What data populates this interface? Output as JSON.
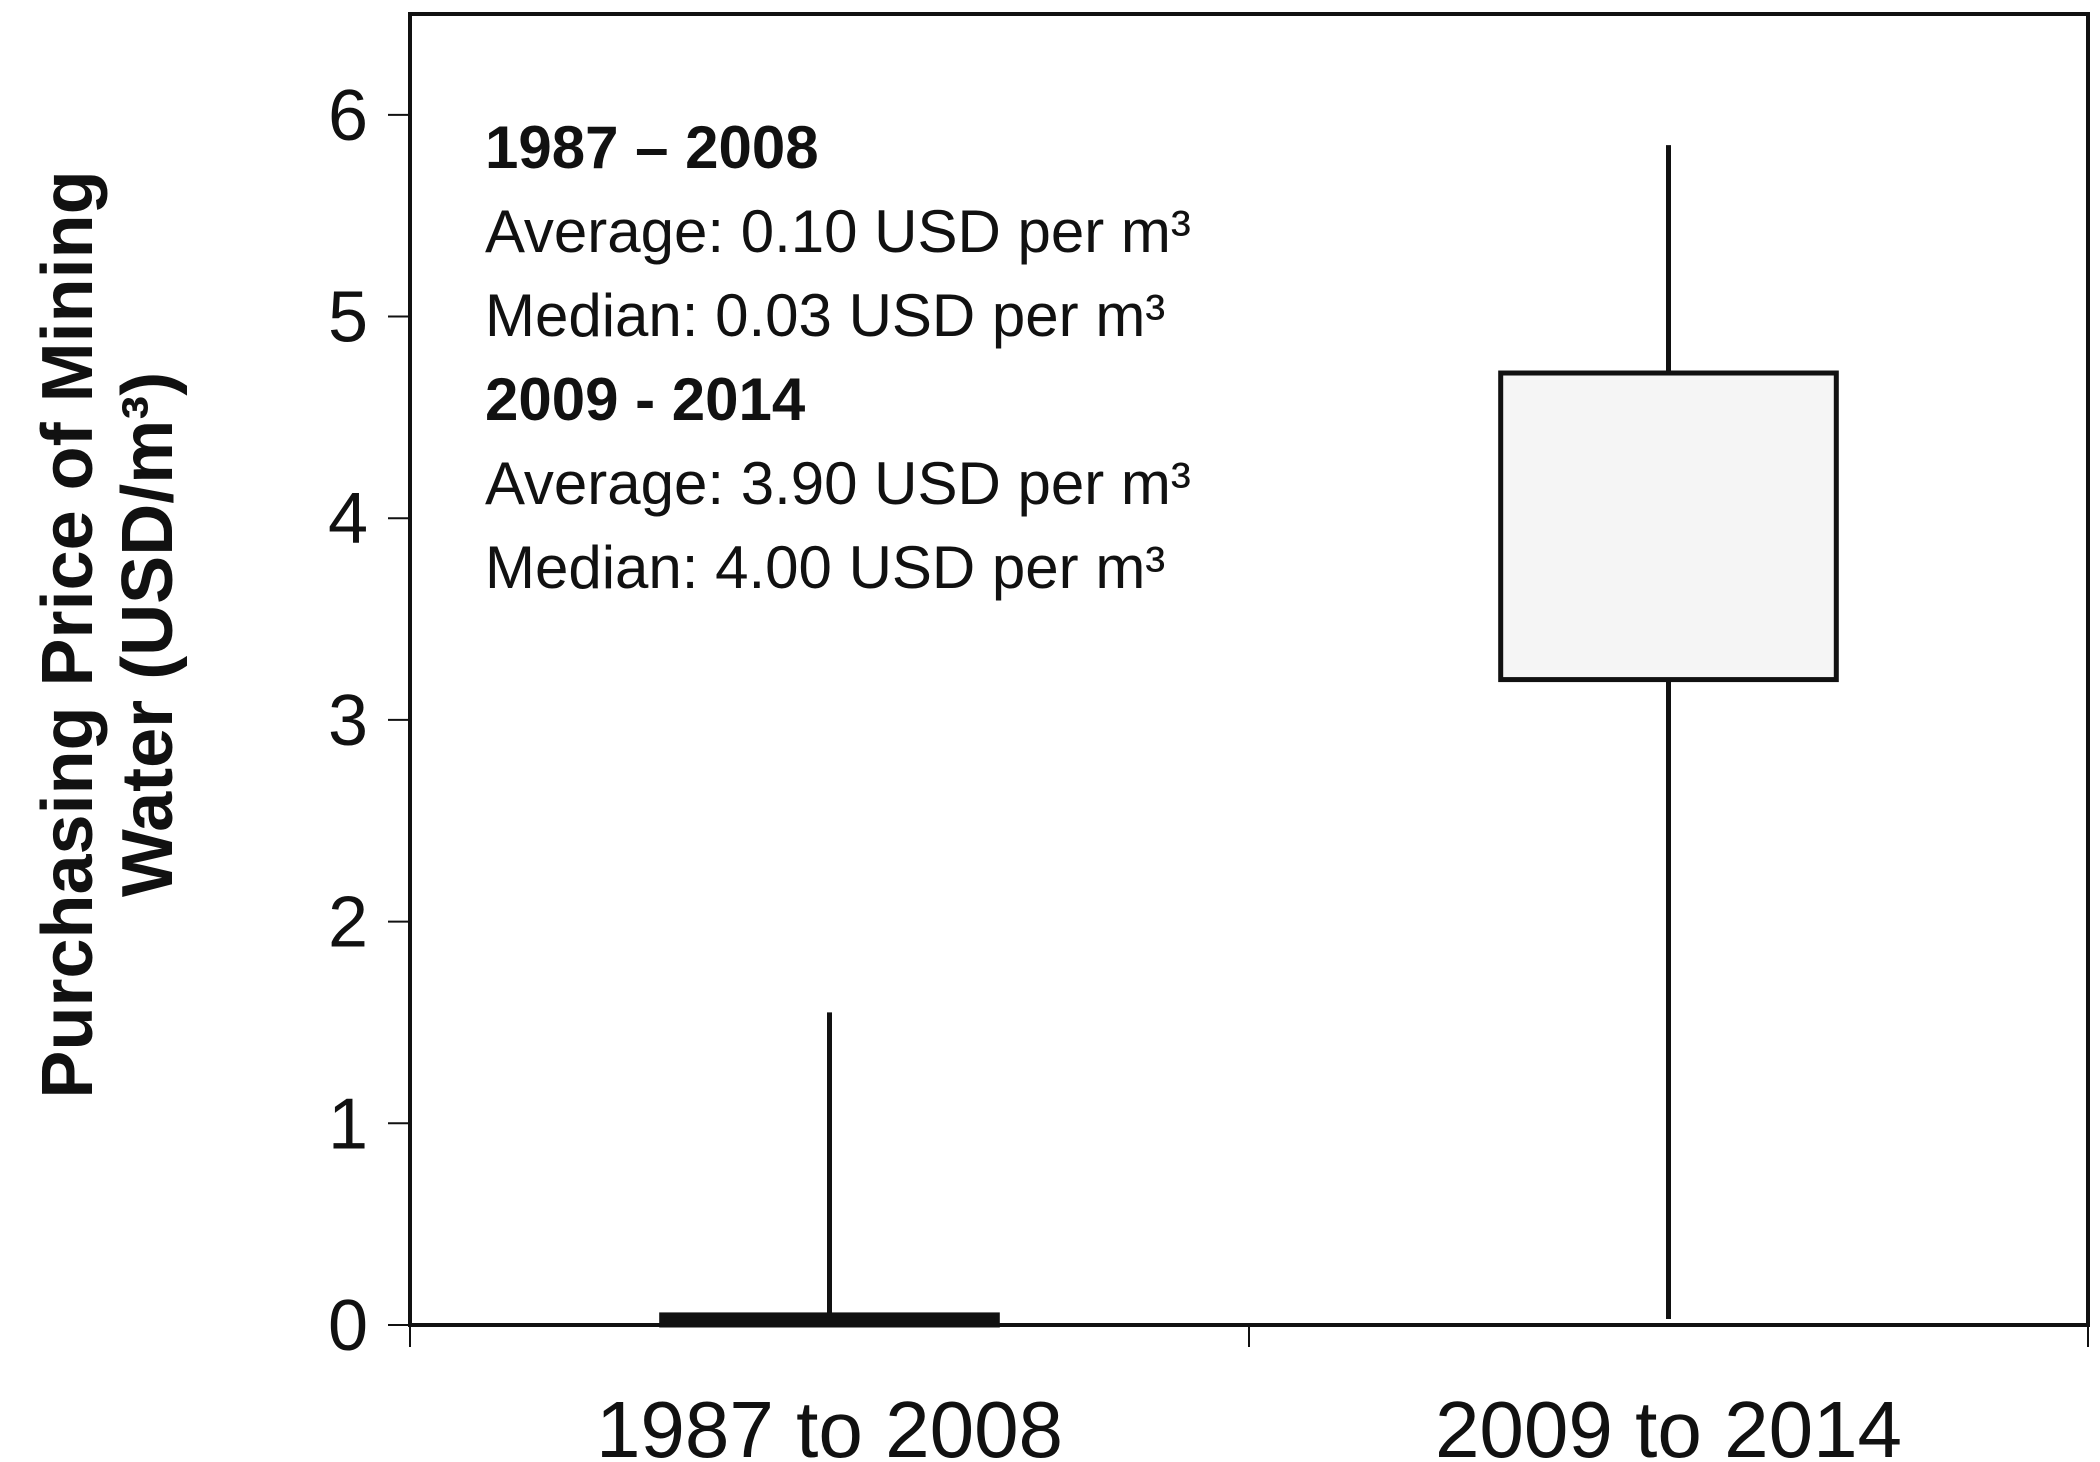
{
  "chart_data": {
    "type": "box",
    "title": "",
    "xlabel": "",
    "ylabel_lines": [
      "Purchasing  Price of Mining",
      "Water (USD/m³)"
    ],
    "ylim": [
      0,
      6.5
    ],
    "yticks": [
      0,
      1,
      2,
      3,
      4,
      5,
      6
    ],
    "categories": [
      "1987 to 2008",
      "2009 to 2014"
    ],
    "boxes": [
      {
        "category": "1987 to 2008",
        "whisker_low": 0,
        "q1": 0,
        "median": 0.03,
        "q3": 0.05,
        "whisker_high": 1.55,
        "fill": "#111111"
      },
      {
        "category": "2009 to 2014",
        "whisker_low": 0.03,
        "q1": 3.2,
        "median": 4.0,
        "q3": 4.72,
        "whisker_high": 5.85,
        "fill": "#f5f5f5"
      }
    ],
    "grid": false,
    "annotations": [
      {
        "text": "1987 – 2008",
        "bold": true
      },
      {
        "text": "Average:  0.10 USD per m³",
        "bold": false
      },
      {
        "text": "Median:  0.03 USD per m³",
        "bold": false
      },
      {
        "text": "2009 - 2014",
        "bold": true
      },
      {
        "text": "Average:  3.90 USD per m³",
        "bold": false
      },
      {
        "text": "Median:  4.00 USD per m³",
        "bold": false
      }
    ],
    "colors": {
      "axis": "#111111",
      "box_edge": "#111111"
    }
  }
}
